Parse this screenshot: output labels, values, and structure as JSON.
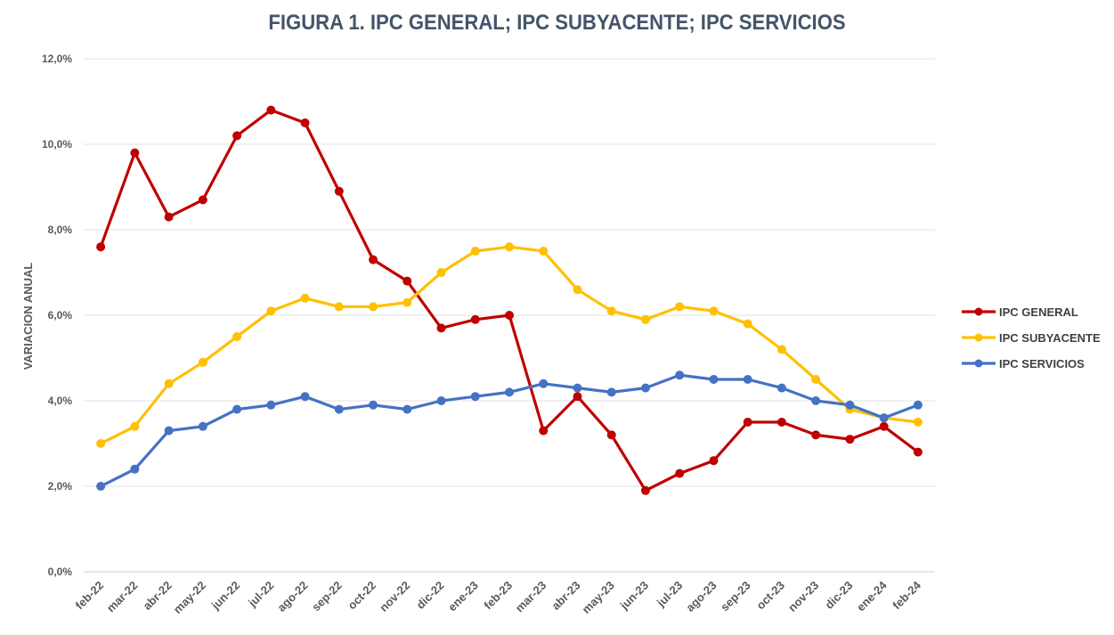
{
  "chart_data": {
    "type": "line",
    "title": "FIGURA 1. IPC GENERAL; IPC SUBYACENTE; IPC SERVICIOS",
    "xlabel": "",
    "ylabel": "VARIACION ANUAL",
    "ylim": [
      0,
      12
    ],
    "yticks": [
      0,
      2,
      4,
      6,
      8,
      10,
      12
    ],
    "ytick_labels": [
      "0,0%",
      "2,0%",
      "4,0%",
      "6,0%",
      "8,0%",
      "10,0%",
      "12,0%"
    ],
    "grid": true,
    "legend_position": "right",
    "categories": [
      "feb-22",
      "mar-22",
      "abr-22",
      "may-22",
      "jun-22",
      "jul-22",
      "ago-22",
      "sep-22",
      "oct-22",
      "nov-22",
      "dic-22",
      "ene-23",
      "feb-23",
      "mar-23",
      "abr-23",
      "may-23",
      "jun-23",
      "jul-23",
      "ago-23",
      "sep-23",
      "oct-23",
      "nov-23",
      "dic-23",
      "ene-24",
      "feb-24"
    ],
    "series": [
      {
        "name": "IPC GENERAL",
        "color": "#c00000",
        "values": [
          7.6,
          9.8,
          8.3,
          8.7,
          10.2,
          10.8,
          10.5,
          8.9,
          7.3,
          6.8,
          5.7,
          5.9,
          6.0,
          3.3,
          4.1,
          3.2,
          1.9,
          2.3,
          2.6,
          3.5,
          3.5,
          3.2,
          3.1,
          3.4,
          2.8
        ]
      },
      {
        "name": "IPC SUBYACENTE",
        "color": "#ffc000",
        "values": [
          3.0,
          3.4,
          4.4,
          4.9,
          5.5,
          6.1,
          6.4,
          6.2,
          6.2,
          6.3,
          7.0,
          7.5,
          7.6,
          7.5,
          6.6,
          6.1,
          5.9,
          6.2,
          6.1,
          5.8,
          5.2,
          4.5,
          3.8,
          3.6,
          3.5
        ]
      },
      {
        "name": "IPC SERVICIOS",
        "color": "#4472c4",
        "values": [
          2.0,
          2.4,
          3.3,
          3.4,
          3.8,
          3.9,
          4.1,
          3.8,
          3.9,
          3.8,
          4.0,
          4.1,
          4.2,
          4.4,
          4.3,
          4.2,
          4.3,
          4.6,
          4.5,
          4.5,
          4.3,
          4.0,
          3.9,
          3.6,
          3.9
        ]
      }
    ]
  }
}
